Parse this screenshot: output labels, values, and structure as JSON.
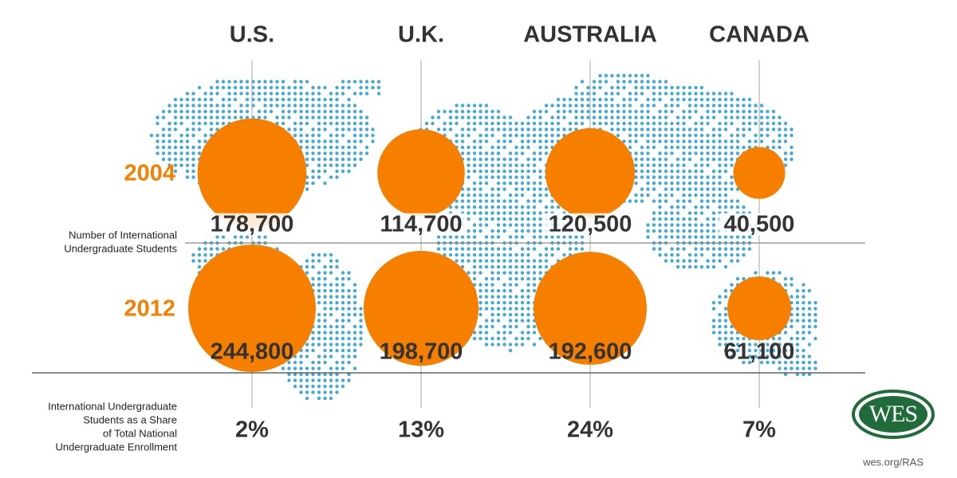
{
  "chart_data": {
    "type": "bubble",
    "categories": [
      "U.S.",
      "U.K.",
      "AUSTRALIA",
      "CANADA"
    ],
    "series": [
      {
        "name": "2004",
        "color": "#f77f00",
        "values": [
          178700,
          114700,
          120500,
          40500
        ],
        "value_labels": [
          "178,700",
          "114,700",
          "120,500",
          "40,500"
        ]
      },
      {
        "name": "2012",
        "color": "#f77f00",
        "values": [
          244800,
          198700,
          192600,
          61100
        ],
        "value_labels": [
          "244,800",
          "198,700",
          "192,600",
          "61,100"
        ]
      }
    ],
    "bubble_label_lines": [
      "Number of International",
      "Undergraduate Students"
    ],
    "share": {
      "label_lines": [
        "International Undergraduate",
        "Students as a Share",
        "of Total National",
        "Undergraduate Enrollment"
      ],
      "values": [
        2,
        13,
        24,
        7
      ],
      "value_labels": [
        "2%",
        "13%",
        "24%",
        "7%"
      ]
    },
    "logo": "WES",
    "source": "wes.org/RAS"
  }
}
